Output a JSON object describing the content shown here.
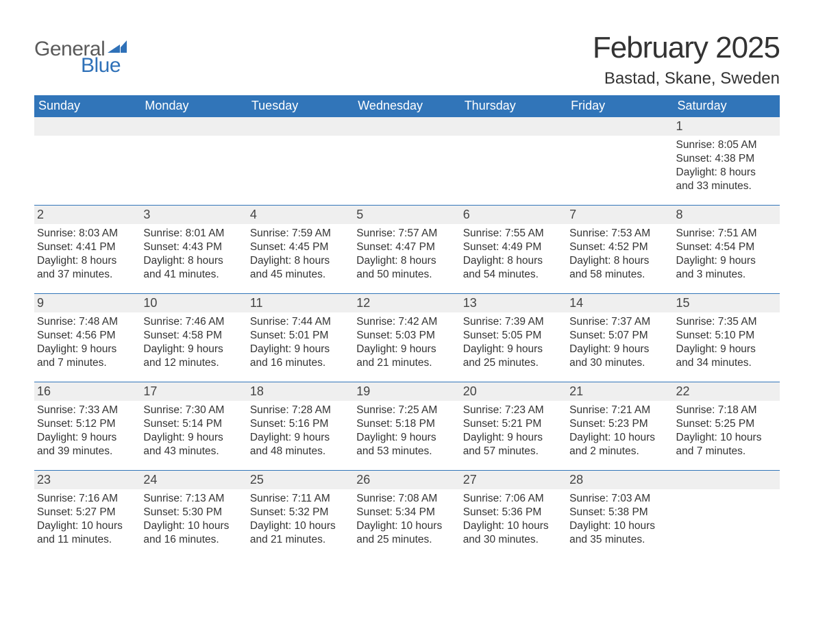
{
  "logo": {
    "text_general": "General",
    "text_blue": "Blue",
    "general_color": "#5a5a5a",
    "blue_color": "#2f71b8",
    "flag_color": "#2f71b8"
  },
  "title": {
    "month_year": "February 2025",
    "location": "Bastad, Skane, Sweden",
    "month_fontsize": 44,
    "location_fontsize": 24,
    "text_color": "#333333"
  },
  "calendar": {
    "header_bg": "#3175b9",
    "header_text_color": "#ffffff",
    "daynum_bg": "#efefef",
    "row_border_color": "#3175b9",
    "body_text_color": "#333333",
    "body_fontsize": 15.5,
    "day_headers": [
      "Sunday",
      "Monday",
      "Tuesday",
      "Wednesday",
      "Thursday",
      "Friday",
      "Saturday"
    ],
    "weeks": [
      [
        {
          "day": "",
          "sunrise": "",
          "sunset": "",
          "daylight": ""
        },
        {
          "day": "",
          "sunrise": "",
          "sunset": "",
          "daylight": ""
        },
        {
          "day": "",
          "sunrise": "",
          "sunset": "",
          "daylight": ""
        },
        {
          "day": "",
          "sunrise": "",
          "sunset": "",
          "daylight": ""
        },
        {
          "day": "",
          "sunrise": "",
          "sunset": "",
          "daylight": ""
        },
        {
          "day": "",
          "sunrise": "",
          "sunset": "",
          "daylight": ""
        },
        {
          "day": "1",
          "sunrise": "Sunrise: 8:05 AM",
          "sunset": "Sunset: 4:38 PM",
          "daylight": "Daylight: 8 hours and 33 minutes."
        }
      ],
      [
        {
          "day": "2",
          "sunrise": "Sunrise: 8:03 AM",
          "sunset": "Sunset: 4:41 PM",
          "daylight": "Daylight: 8 hours and 37 minutes."
        },
        {
          "day": "3",
          "sunrise": "Sunrise: 8:01 AM",
          "sunset": "Sunset: 4:43 PM",
          "daylight": "Daylight: 8 hours and 41 minutes."
        },
        {
          "day": "4",
          "sunrise": "Sunrise: 7:59 AM",
          "sunset": "Sunset: 4:45 PM",
          "daylight": "Daylight: 8 hours and 45 minutes."
        },
        {
          "day": "5",
          "sunrise": "Sunrise: 7:57 AM",
          "sunset": "Sunset: 4:47 PM",
          "daylight": "Daylight: 8 hours and 50 minutes."
        },
        {
          "day": "6",
          "sunrise": "Sunrise: 7:55 AM",
          "sunset": "Sunset: 4:49 PM",
          "daylight": "Daylight: 8 hours and 54 minutes."
        },
        {
          "day": "7",
          "sunrise": "Sunrise: 7:53 AM",
          "sunset": "Sunset: 4:52 PM",
          "daylight": "Daylight: 8 hours and 58 minutes."
        },
        {
          "day": "8",
          "sunrise": "Sunrise: 7:51 AM",
          "sunset": "Sunset: 4:54 PM",
          "daylight": "Daylight: 9 hours and 3 minutes."
        }
      ],
      [
        {
          "day": "9",
          "sunrise": "Sunrise: 7:48 AM",
          "sunset": "Sunset: 4:56 PM",
          "daylight": "Daylight: 9 hours and 7 minutes."
        },
        {
          "day": "10",
          "sunrise": "Sunrise: 7:46 AM",
          "sunset": "Sunset: 4:58 PM",
          "daylight": "Daylight: 9 hours and 12 minutes."
        },
        {
          "day": "11",
          "sunrise": "Sunrise: 7:44 AM",
          "sunset": "Sunset: 5:01 PM",
          "daylight": "Daylight: 9 hours and 16 minutes."
        },
        {
          "day": "12",
          "sunrise": "Sunrise: 7:42 AM",
          "sunset": "Sunset: 5:03 PM",
          "daylight": "Daylight: 9 hours and 21 minutes."
        },
        {
          "day": "13",
          "sunrise": "Sunrise: 7:39 AM",
          "sunset": "Sunset: 5:05 PM",
          "daylight": "Daylight: 9 hours and 25 minutes."
        },
        {
          "day": "14",
          "sunrise": "Sunrise: 7:37 AM",
          "sunset": "Sunset: 5:07 PM",
          "daylight": "Daylight: 9 hours and 30 minutes."
        },
        {
          "day": "15",
          "sunrise": "Sunrise: 7:35 AM",
          "sunset": "Sunset: 5:10 PM",
          "daylight": "Daylight: 9 hours and 34 minutes."
        }
      ],
      [
        {
          "day": "16",
          "sunrise": "Sunrise: 7:33 AM",
          "sunset": "Sunset: 5:12 PM",
          "daylight": "Daylight: 9 hours and 39 minutes."
        },
        {
          "day": "17",
          "sunrise": "Sunrise: 7:30 AM",
          "sunset": "Sunset: 5:14 PM",
          "daylight": "Daylight: 9 hours and 43 minutes."
        },
        {
          "day": "18",
          "sunrise": "Sunrise: 7:28 AM",
          "sunset": "Sunset: 5:16 PM",
          "daylight": "Daylight: 9 hours and 48 minutes."
        },
        {
          "day": "19",
          "sunrise": "Sunrise: 7:25 AM",
          "sunset": "Sunset: 5:18 PM",
          "daylight": "Daylight: 9 hours and 53 minutes."
        },
        {
          "day": "20",
          "sunrise": "Sunrise: 7:23 AM",
          "sunset": "Sunset: 5:21 PM",
          "daylight": "Daylight: 9 hours and 57 minutes."
        },
        {
          "day": "21",
          "sunrise": "Sunrise: 7:21 AM",
          "sunset": "Sunset: 5:23 PM",
          "daylight": "Daylight: 10 hours and 2 minutes."
        },
        {
          "day": "22",
          "sunrise": "Sunrise: 7:18 AM",
          "sunset": "Sunset: 5:25 PM",
          "daylight": "Daylight: 10 hours and 7 minutes."
        }
      ],
      [
        {
          "day": "23",
          "sunrise": "Sunrise: 7:16 AM",
          "sunset": "Sunset: 5:27 PM",
          "daylight": "Daylight: 10 hours and 11 minutes."
        },
        {
          "day": "24",
          "sunrise": "Sunrise: 7:13 AM",
          "sunset": "Sunset: 5:30 PM",
          "daylight": "Daylight: 10 hours and 16 minutes."
        },
        {
          "day": "25",
          "sunrise": "Sunrise: 7:11 AM",
          "sunset": "Sunset: 5:32 PM",
          "daylight": "Daylight: 10 hours and 21 minutes."
        },
        {
          "day": "26",
          "sunrise": "Sunrise: 7:08 AM",
          "sunset": "Sunset: 5:34 PM",
          "daylight": "Daylight: 10 hours and 25 minutes."
        },
        {
          "day": "27",
          "sunrise": "Sunrise: 7:06 AM",
          "sunset": "Sunset: 5:36 PM",
          "daylight": "Daylight: 10 hours and 30 minutes."
        },
        {
          "day": "28",
          "sunrise": "Sunrise: 7:03 AM",
          "sunset": "Sunset: 5:38 PM",
          "daylight": "Daylight: 10 hours and 35 minutes."
        },
        {
          "day": "",
          "sunrise": "",
          "sunset": "",
          "daylight": ""
        }
      ]
    ]
  }
}
